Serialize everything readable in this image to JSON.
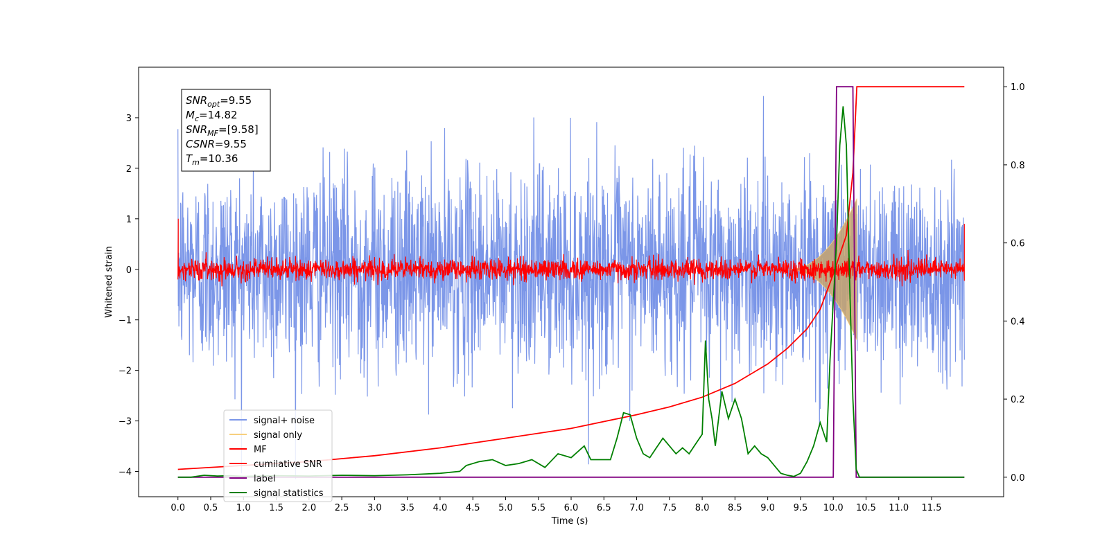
{
  "chart_data": {
    "type": "line",
    "xlabel": "Time (s)",
    "ylabel": "Whitened strain",
    "xlim": [
      -0.6,
      12.6
    ],
    "ylim_left": [
      -4.5,
      4.0
    ],
    "ylim_right": [
      -0.05,
      1.05
    ],
    "x_ticks": [
      "0.0",
      "0.5",
      "1.0",
      "1.5",
      "2.0",
      "2.5",
      "3.0",
      "3.5",
      "4.0",
      "4.5",
      "5.0",
      "5.5",
      "6.0",
      "6.5",
      "7.0",
      "7.5",
      "8.0",
      "8.5",
      "9.0",
      "9.5",
      "10.0",
      "10.5",
      "11.0",
      "11.5"
    ],
    "y_ticks_left": [
      "3",
      "2",
      "1",
      "0",
      "−1",
      "−2",
      "−3",
      "−4"
    ],
    "y_ticks_right": [
      "1.0",
      "0.8",
      "0.6",
      "0.4",
      "0.2",
      "0.0"
    ],
    "info_box": [
      {
        "main": "SNR",
        "sub": "opt",
        "rest": "=9.55"
      },
      {
        "main": "M",
        "sub": "c",
        "rest": "=14.82"
      },
      {
        "main": "SNR",
        "sub": "MF",
        "rest": "=[9.58]"
      },
      {
        "main": "CSNR",
        "sub": "",
        "rest": "=9.55"
      },
      {
        "main": "T",
        "sub": "m",
        "rest": "=10.36"
      }
    ],
    "legend": {
      "placement": "lower-left",
      "entries": [
        {
          "label": "signal+ noise",
          "color": "#7B96E8"
        },
        {
          "label": "signal only",
          "color": "#F7CF7E"
        },
        {
          "label": "MF",
          "color": "#FF0000"
        },
        {
          "label": "cumilative SNR",
          "color": "#FF0000"
        },
        {
          "label": "label",
          "color": "#800080"
        },
        {
          "label": "signal statistics",
          "color": "#008000"
        }
      ]
    },
    "series": [
      {
        "name": "signal+ noise",
        "axis": "left",
        "color": "#7B96E8",
        "x_range": [
          0.0,
          12.0
        ],
        "mean": 0.0,
        "std": 1.0,
        "max": 3.6,
        "min": -4.15
      },
      {
        "name": "signal only",
        "axis": "left",
        "color": "#F7CF7E",
        "x_range": [
          9.3,
          10.36
        ],
        "peak_amplitude": 1.4
      },
      {
        "name": "MF",
        "axis": "left",
        "color": "#FF0000",
        "x_range": [
          0.0,
          12.0
        ],
        "amplitude": 0.3
      },
      {
        "name": "cumilative SNR",
        "axis": "right",
        "color": "#FF0000",
        "x": [
          0.0,
          1.0,
          2.0,
          3.0,
          4.0,
          5.0,
          6.0,
          7.0,
          7.5,
          8.0,
          8.5,
          9.0,
          9.3,
          9.6,
          9.8,
          10.0,
          10.1,
          10.2,
          10.3,
          10.36,
          12.0
        ],
        "y": [
          0.02,
          0.03,
          0.04,
          0.055,
          0.075,
          0.1,
          0.125,
          0.16,
          0.18,
          0.205,
          0.24,
          0.29,
          0.33,
          0.38,
          0.43,
          0.52,
          0.57,
          0.62,
          0.78,
          1.0,
          1.0
        ]
      },
      {
        "name": "label",
        "axis": "right",
        "color": "#800080",
        "x": [
          0.0,
          10.0,
          10.05,
          10.3,
          10.35,
          12.0
        ],
        "y": [
          0.0,
          0.0,
          1.0,
          1.0,
          0.0,
          0.0
        ]
      },
      {
        "name": "signal statistics",
        "axis": "right",
        "color": "#008000",
        "x": [
          0.0,
          0.2,
          0.4,
          0.6,
          0.8,
          1.0,
          1.5,
          2.0,
          2.5,
          3.0,
          3.5,
          4.0,
          4.3,
          4.4,
          4.6,
          4.8,
          5.0,
          5.2,
          5.4,
          5.6,
          5.8,
          6.0,
          6.2,
          6.3,
          6.4,
          6.6,
          6.7,
          6.8,
          6.9,
          7.0,
          7.1,
          7.2,
          7.3,
          7.4,
          7.5,
          7.6,
          7.7,
          7.8,
          7.9,
          8.0,
          8.05,
          8.1,
          8.15,
          8.2,
          8.3,
          8.4,
          8.5,
          8.6,
          8.7,
          8.8,
          8.9,
          9.0,
          9.1,
          9.2,
          9.3,
          9.4,
          9.5,
          9.6,
          9.7,
          9.8,
          9.9,
          9.95,
          10.0,
          10.05,
          10.1,
          10.15,
          10.2,
          10.25,
          10.3,
          10.35,
          10.4,
          10.5,
          11.0,
          11.5,
          12.0
        ],
        "y": [
          0.0,
          0.0,
          0.005,
          0.003,
          0.004,
          0.002,
          0.004,
          0.003,
          0.005,
          0.004,
          0.006,
          0.01,
          0.015,
          0.03,
          0.04,
          0.045,
          0.03,
          0.035,
          0.045,
          0.025,
          0.06,
          0.05,
          0.08,
          0.045,
          0.045,
          0.045,
          0.1,
          0.165,
          0.16,
          0.1,
          0.06,
          0.05,
          0.075,
          0.1,
          0.08,
          0.06,
          0.075,
          0.06,
          0.085,
          0.11,
          0.35,
          0.2,
          0.15,
          0.08,
          0.22,
          0.15,
          0.2,
          0.15,
          0.06,
          0.08,
          0.06,
          0.05,
          0.03,
          0.01,
          0.005,
          0.002,
          0.01,
          0.04,
          0.08,
          0.14,
          0.09,
          0.3,
          0.45,
          0.6,
          0.85,
          0.95,
          0.85,
          0.5,
          0.2,
          0.02,
          0.0,
          0.0,
          0.0,
          0.0,
          0.0
        ]
      }
    ]
  }
}
